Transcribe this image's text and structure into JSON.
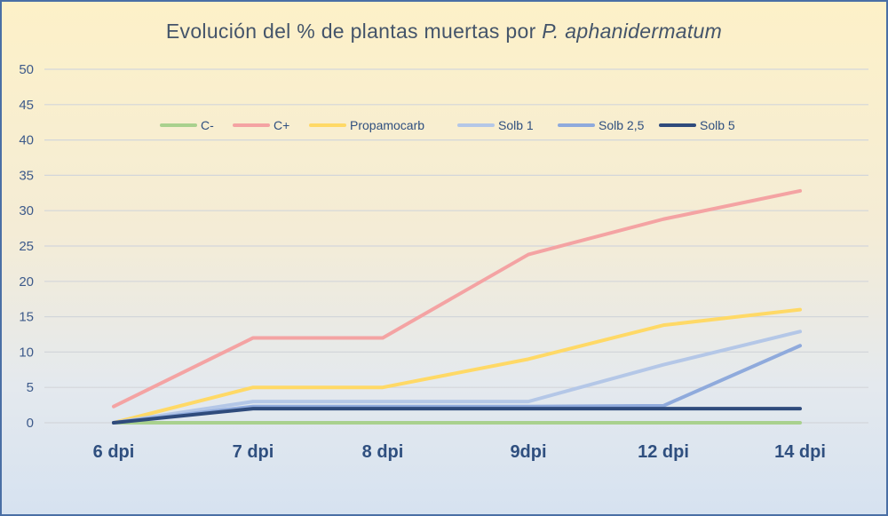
{
  "title": {
    "main": "Evolución  del % de plantas  muertas por ",
    "italic": "P. aphanidermatum"
  },
  "chart_data": {
    "type": "line",
    "title": "Evolución  del % de plantas  muertas por P. aphanidermatum",
    "categories": [
      "6 dpi",
      "7 dpi",
      "8 dpi",
      "9dpi",
      "12 dpi",
      "14 dpi"
    ],
    "ylim": [
      0,
      50
    ],
    "yticks": [
      0,
      5,
      10,
      15,
      20,
      25,
      30,
      35,
      40,
      45,
      50
    ],
    "grid": "horizontal",
    "legend_position": "top-center",
    "series": [
      {
        "name": "C-",
        "color": "#a9d18e",
        "values": [
          0,
          0,
          0,
          0,
          0,
          0
        ]
      },
      {
        "name": "C+",
        "color": "#f4a3a3",
        "values": [
          2.3,
          12,
          12,
          23.8,
          28.8,
          32.8
        ]
      },
      {
        "name": "Propamocarb",
        "color": "#ffd966",
        "values": [
          0,
          5,
          5,
          9,
          13.8,
          16
        ]
      },
      {
        "name": "Solb 1",
        "color": "#b4c7e7",
        "values": [
          0,
          3,
          3,
          3,
          8.2,
          12.9
        ]
      },
      {
        "name": "Solb 2,5",
        "color": "#8faadc",
        "values": [
          0,
          2.3,
          2.3,
          2.3,
          2.4,
          10.9
        ]
      },
      {
        "name": "Solb 5",
        "color": "#2f4b7c",
        "values": [
          0,
          2,
          2,
          2,
          2,
          2
        ]
      }
    ]
  }
}
